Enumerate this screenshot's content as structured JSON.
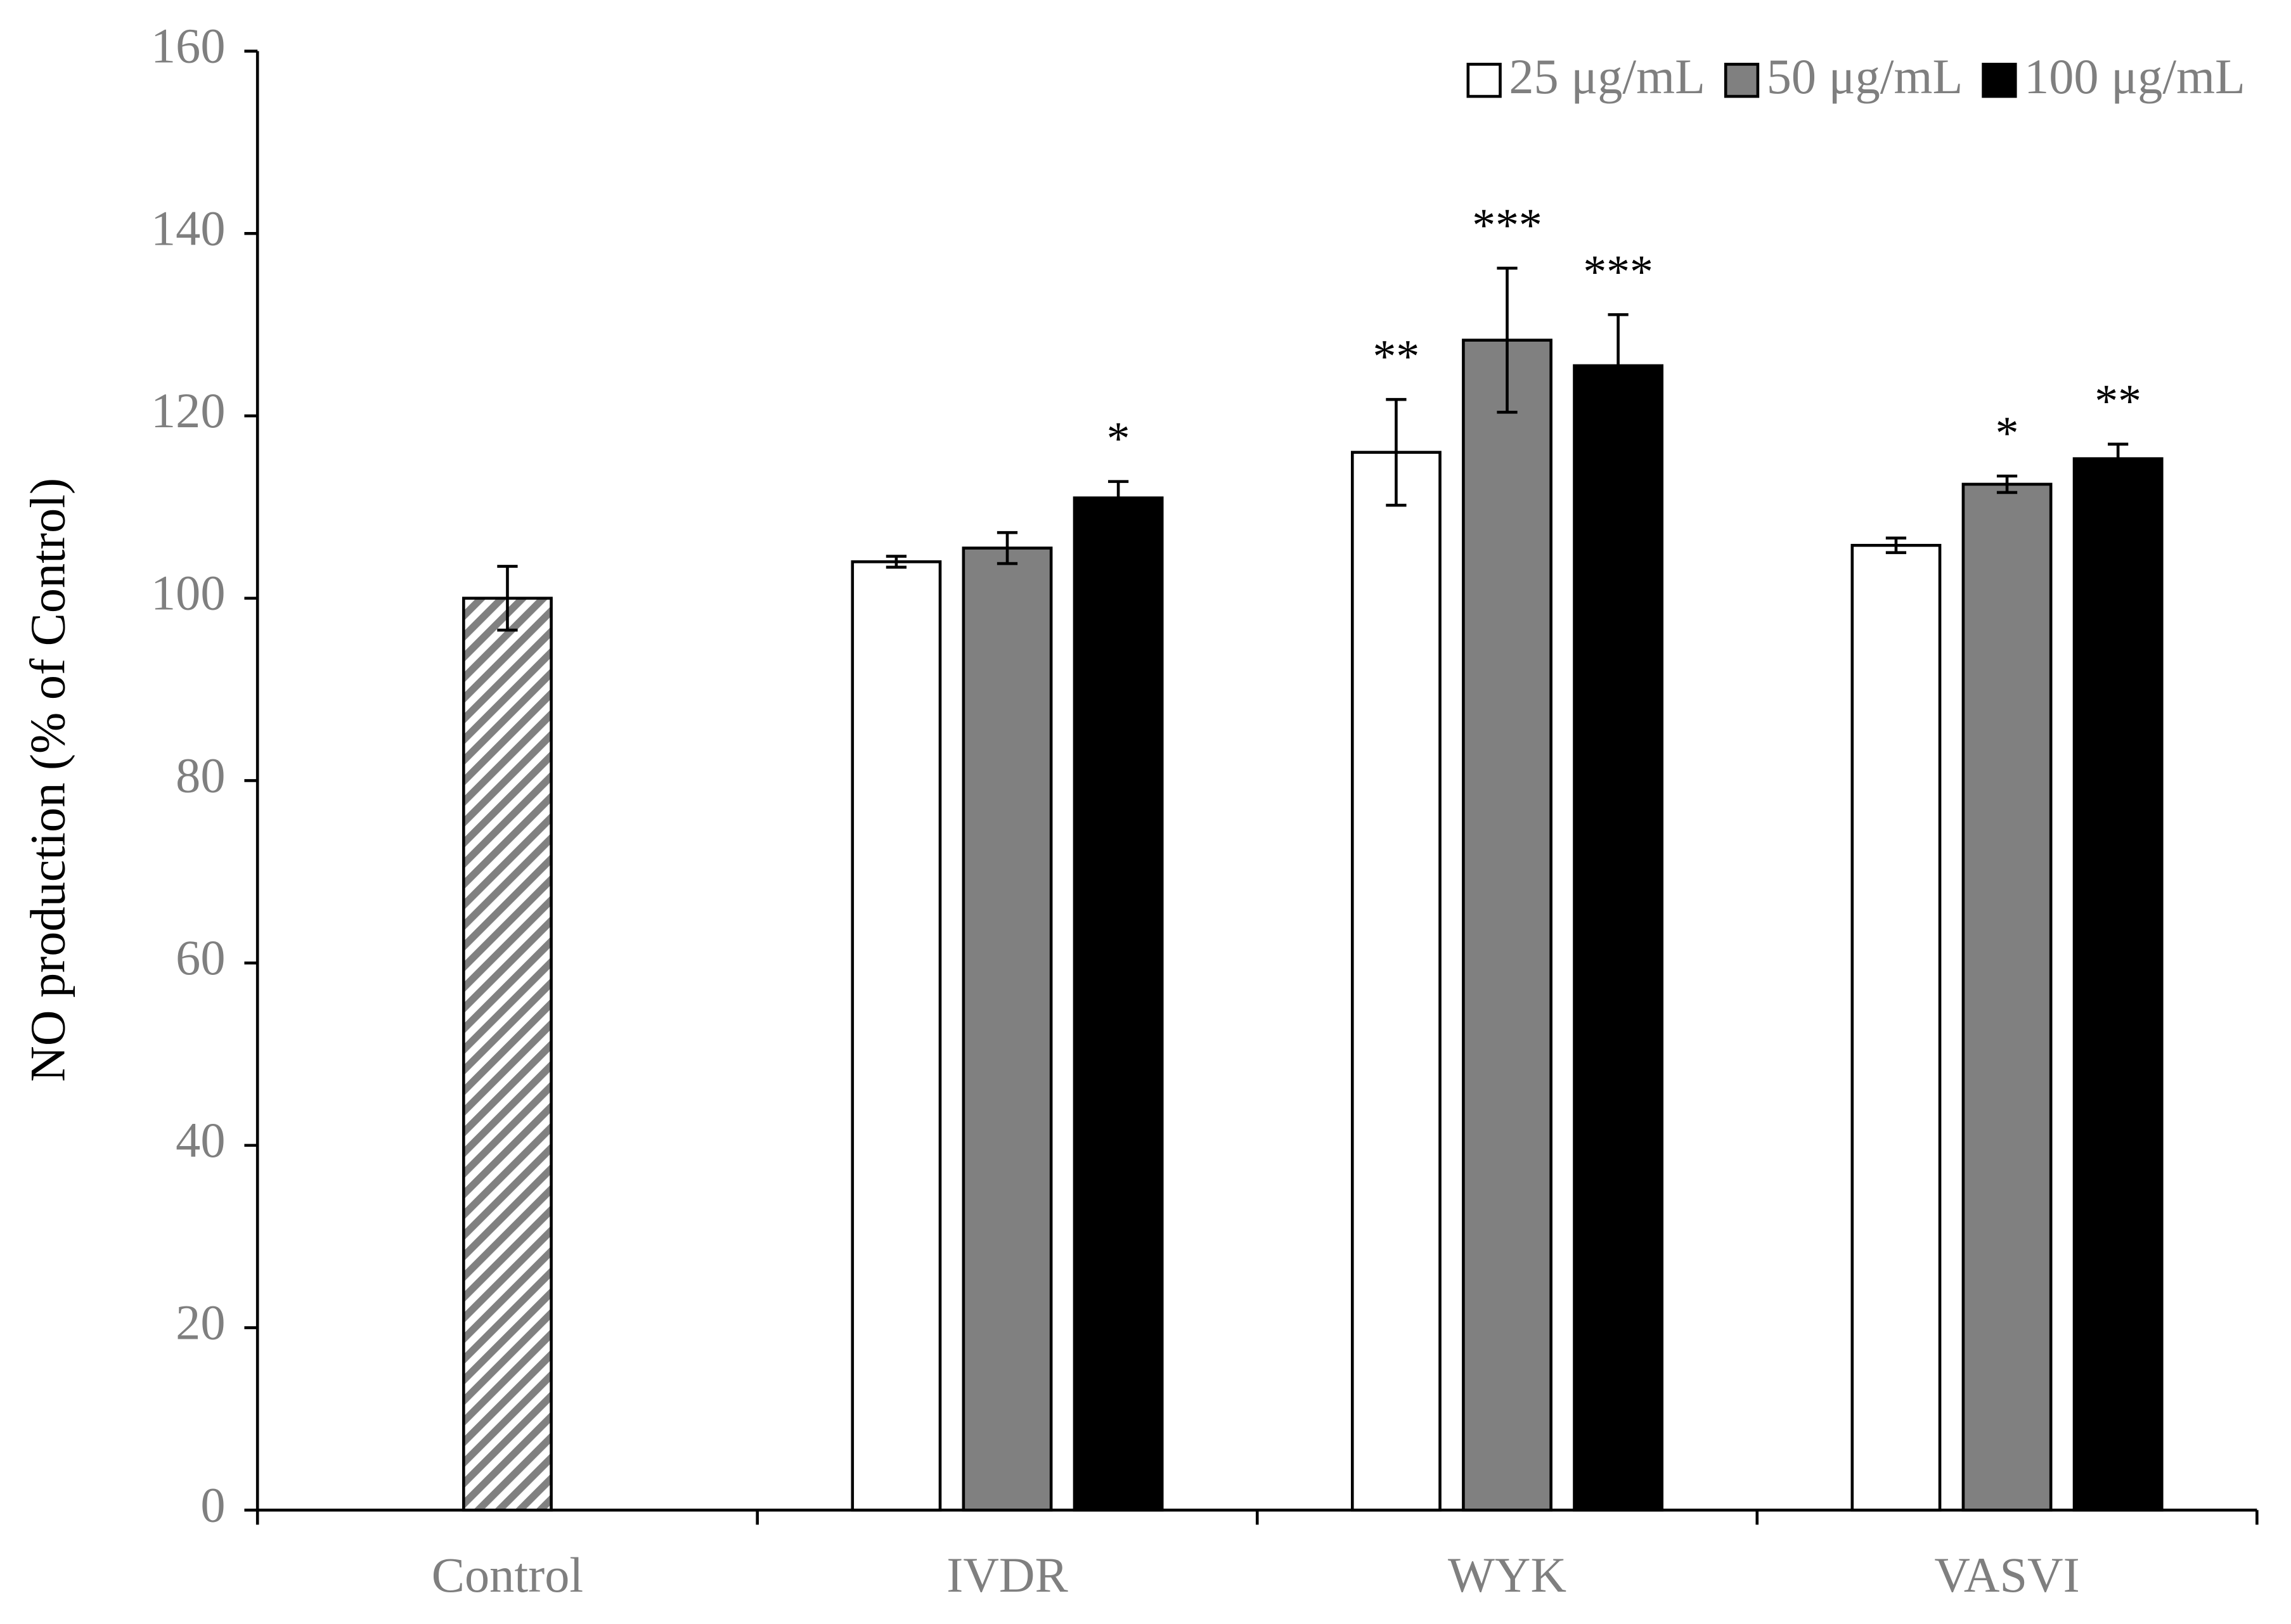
{
  "chart_data": {
    "type": "bar",
    "y_label": "NO production (% of Control)",
    "categories": [
      "Control",
      "IVDR",
      "WYK",
      "VASVI"
    ],
    "ylim": [
      0,
      160
    ],
    "yticks": [
      0,
      20,
      40,
      60,
      80,
      100,
      120,
      140,
      160
    ],
    "legend": "upper right",
    "control_bar": {
      "values": [
        100,
        null,
        null,
        null
      ],
      "errors": [
        3.5,
        null,
        null,
        null
      ],
      "color": "#808080",
      "pattern": "hatch"
    },
    "series": [
      {
        "name": "25 μg/mL",
        "color": "#ffffff",
        "values": [
          null,
          104,
          116,
          105.8
        ],
        "errors": [
          null,
          0.6,
          5.8,
          0.8
        ],
        "labels": [
          null,
          null,
          "**",
          null
        ]
      },
      {
        "name": "50 μg/mL",
        "color": "#808080",
        "values": [
          null,
          105.5,
          128.3,
          112.5
        ],
        "errors": [
          null,
          1.7,
          7.9,
          0.9
        ],
        "labels": [
          null,
          null,
          "***",
          "*"
        ]
      },
      {
        "name": "100 μg/mL",
        "color": "#000000",
        "values": [
          null,
          111,
          125.5,
          115.3
        ],
        "errors": [
          null,
          1.8,
          5.6,
          1.6
        ],
        "labels": [
          null,
          "*",
          "***",
          "**"
        ]
      }
    ]
  }
}
